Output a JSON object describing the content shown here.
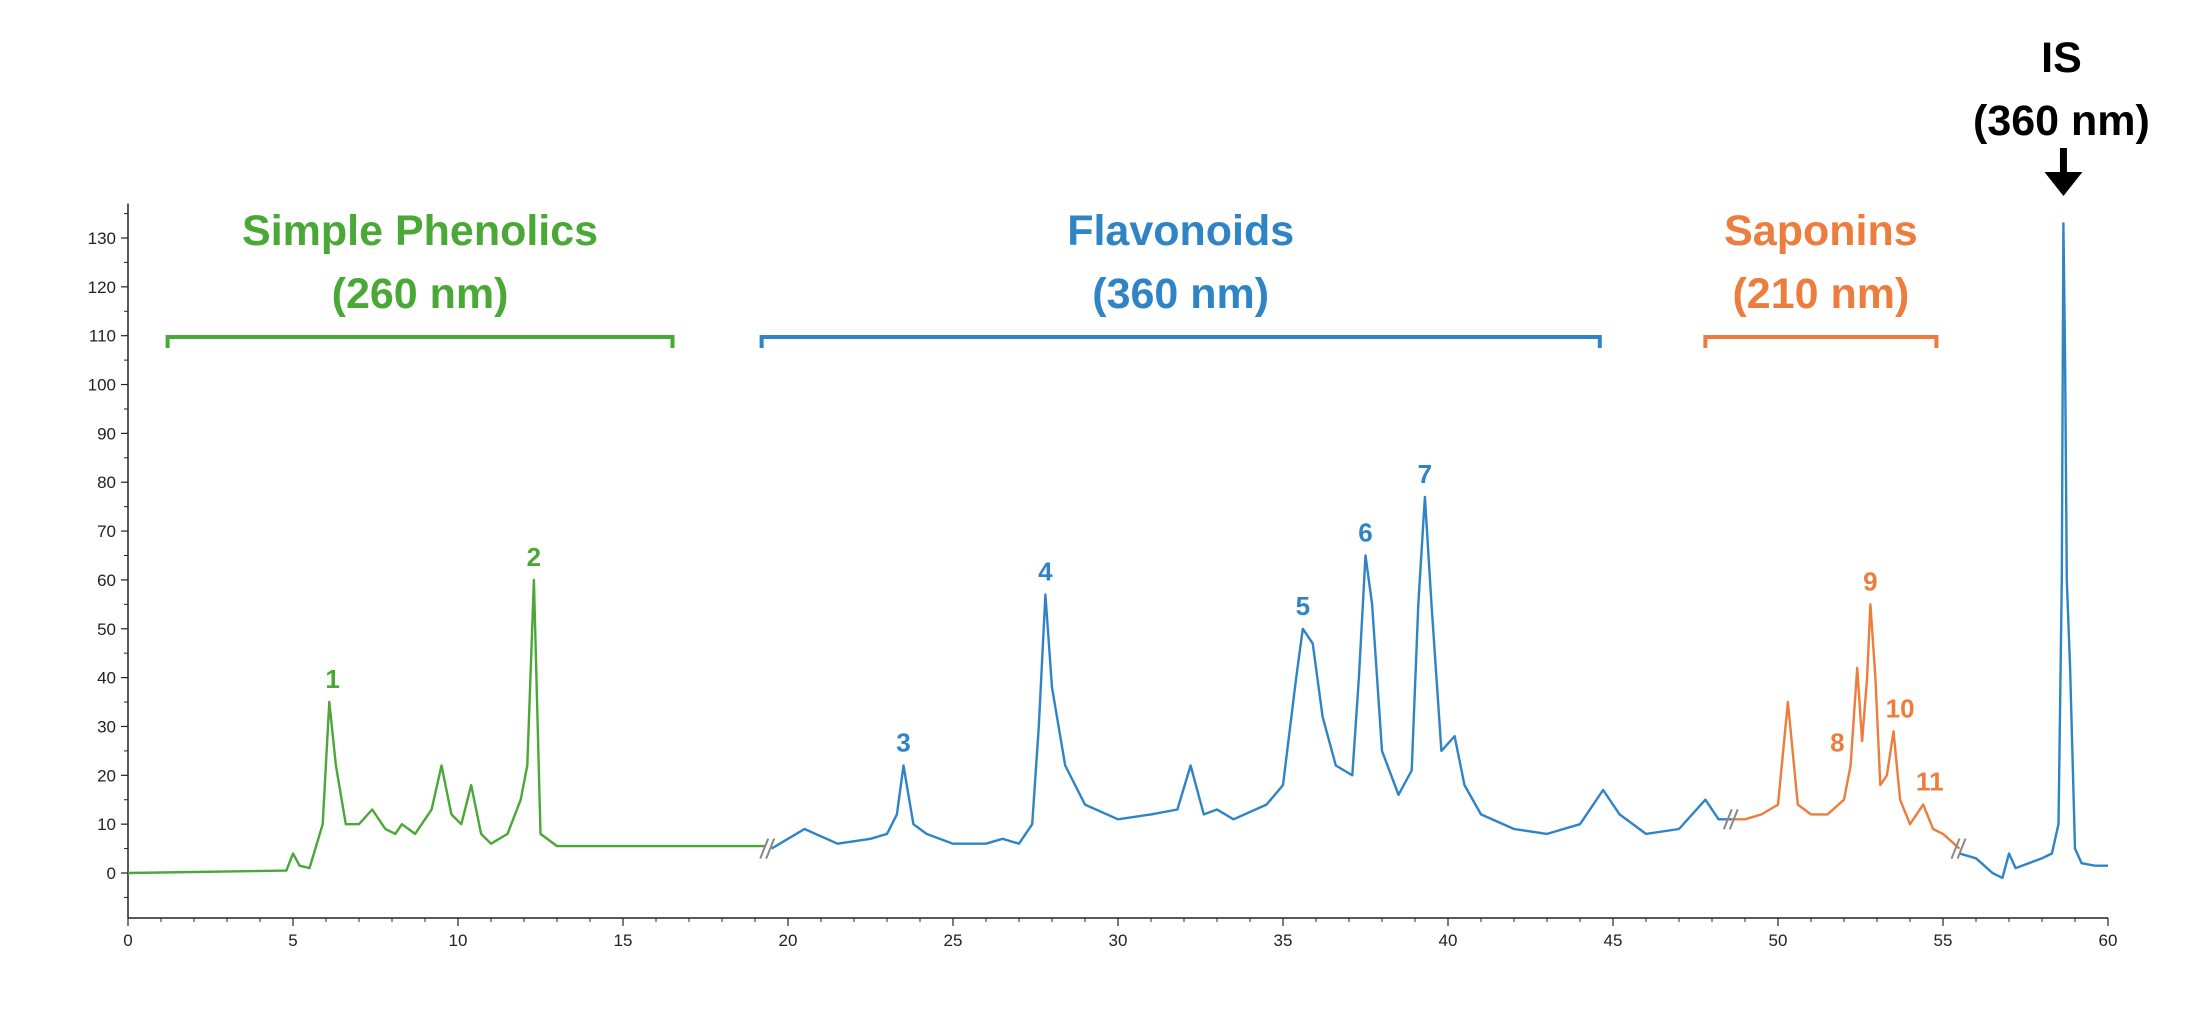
{
  "chart_data": {
    "type": "line",
    "title": "",
    "xlabel": "",
    "ylabel": "",
    "xlim": [
      0,
      60
    ],
    "ylim": [
      -10,
      135
    ],
    "x_ticks": [
      0,
      5,
      10,
      15,
      20,
      25,
      30,
      35,
      40,
      45,
      50,
      55,
      60
    ],
    "y_ticks": [
      0,
      10,
      20,
      30,
      40,
      50,
      60,
      70,
      80,
      90,
      100,
      110,
      120,
      130
    ],
    "grid": false,
    "colors": {
      "green": "#4aa836",
      "blue": "#2f84c6",
      "orange": "#ec7d3c",
      "axis": "#222222"
    },
    "series": [
      {
        "color": "#4aa836",
        "x": [
          0,
          4.8,
          5.0,
          5.2,
          5.5,
          5.9,
          6.1,
          6.3,
          6.6,
          7.0,
          7.4,
          7.8,
          8.1,
          8.3,
          8.7,
          9.2,
          9.5,
          9.8,
          10.1,
          10.4,
          10.7,
          11.0,
          11.5,
          11.9,
          12.1,
          12.3,
          12.5,
          13.0,
          15.0,
          19.3
        ],
        "y": [
          0,
          0.5,
          4,
          1.5,
          1,
          10,
          35,
          22,
          10,
          10,
          13,
          9,
          8,
          10,
          8,
          13,
          22,
          12,
          10,
          18,
          8,
          6,
          8,
          15,
          22,
          60,
          8,
          5.5,
          5.5,
          5.5
        ]
      },
      {
        "color": "#2f84c6",
        "x": [
          19.5,
          20.0,
          20.5,
          21.5,
          22.5,
          23.0,
          23.3,
          23.5,
          23.8,
          24.2,
          25.0,
          26.0,
          26.5,
          27.0,
          27.4,
          27.6,
          27.8,
          28.0,
          28.4,
          29.0,
          30.0,
          31.0,
          31.8,
          32.2,
          32.6,
          33.0,
          33.5,
          34.5,
          35.0,
          35.4,
          35.6,
          35.9,
          36.2,
          36.6,
          37.1,
          37.3,
          37.5,
          37.7,
          38.0,
          38.5,
          38.9,
          39.1,
          39.3,
          39.5,
          39.8,
          40.2,
          40.5,
          41.0,
          42.0,
          43.0,
          44.0,
          44.7,
          45.2,
          46.0,
          47.0,
          47.8,
          48.2,
          48.6
        ],
        "y": [
          5,
          7,
          9,
          6,
          7,
          8,
          12,
          22,
          10,
          8,
          6,
          6,
          7,
          6,
          10,
          30,
          57,
          38,
          22,
          14,
          11,
          12,
          13,
          22,
          12,
          13,
          11,
          14,
          18,
          40,
          50,
          47,
          32,
          22,
          20,
          40,
          65,
          55,
          25,
          16,
          21,
          55,
          77,
          55,
          25,
          28,
          18,
          12,
          9,
          8,
          10,
          17,
          12,
          8,
          9,
          15,
          11,
          11
        ]
      },
      {
        "color": "#ec7d3c",
        "x": [
          48.6,
          49.0,
          49.5,
          50.0,
          50.3,
          50.6,
          51.0,
          51.5,
          52.0,
          52.2,
          52.4,
          52.55,
          52.7,
          52.8,
          52.95,
          53.1,
          53.3,
          53.5,
          53.7,
          54.0,
          54.4,
          54.7,
          55.0,
          55.5
        ],
        "y": [
          11,
          11,
          12,
          14,
          35,
          14,
          12,
          12,
          15,
          22,
          42,
          27,
          40,
          55,
          40,
          18,
          20,
          29,
          15,
          10,
          14,
          9,
          8,
          5
        ]
      },
      {
        "color": "#2f84c6",
        "x": [
          55.5,
          56.0,
          56.5,
          56.8,
          57.0,
          57.2,
          57.6,
          58.0,
          58.3,
          58.5,
          58.6,
          58.65,
          58.7,
          58.75,
          58.85,
          59.0,
          59.2,
          59.6,
          60.0
        ],
        "y": [
          4,
          3,
          0,
          -1,
          4,
          1,
          2,
          3,
          4,
          10,
          60,
          133,
          105,
          60,
          42,
          5,
          2,
          1.5,
          1.5
        ]
      }
    ],
    "peak_labels": [
      {
        "text": "1",
        "x": 6.2,
        "y": 35,
        "color": "#4aa836"
      },
      {
        "text": "2",
        "x": 12.3,
        "y": 60,
        "color": "#4aa836"
      },
      {
        "text": "3",
        "x": 23.5,
        "y": 22,
        "color": "#2f84c6"
      },
      {
        "text": "4",
        "x": 27.8,
        "y": 57,
        "color": "#2f84c6"
      },
      {
        "text": "5",
        "x": 35.6,
        "y": 50,
        "color": "#2f84c6"
      },
      {
        "text": "6",
        "x": 37.5,
        "y": 65,
        "color": "#2f84c6"
      },
      {
        "text": "7",
        "x": 39.3,
        "y": 77,
        "color": "#2f84c6"
      },
      {
        "text": "8",
        "x": 51.8,
        "y": 22,
        "color": "#ec7d3c"
      },
      {
        "text": "9",
        "x": 52.8,
        "y": 55,
        "color": "#ec7d3c"
      },
      {
        "text": "10",
        "x": 53.7,
        "y": 29,
        "color": "#ec7d3c"
      },
      {
        "text": "11",
        "x": 54.6,
        "y": 14,
        "color": "#ec7d3c"
      }
    ],
    "groups": [
      {
        "line1": "Simple Phenolics",
        "line2": "(260 nm)",
        "x_start": 1.2,
        "x_end": 16.5,
        "color": "#4aa836"
      },
      {
        "line1": "Flavonoids",
        "line2": "(360 nm)",
        "x_start": 19.2,
        "x_end": 44.6,
        "color": "#2f84c6"
      },
      {
        "line1": "Saponins",
        "line2": "(210 nm)",
        "x_start": 47.8,
        "x_end": 54.8,
        "color": "#ec7d3c"
      }
    ],
    "internal_standard": {
      "line1": "IS",
      "line2": "(360 nm)",
      "x": 58.65
    },
    "axis_breaks": [
      {
        "x": 19.4,
        "y": 5
      },
      {
        "x": 48.6,
        "y": 11
      },
      {
        "x": 55.5,
        "y": 5
      }
    ]
  }
}
